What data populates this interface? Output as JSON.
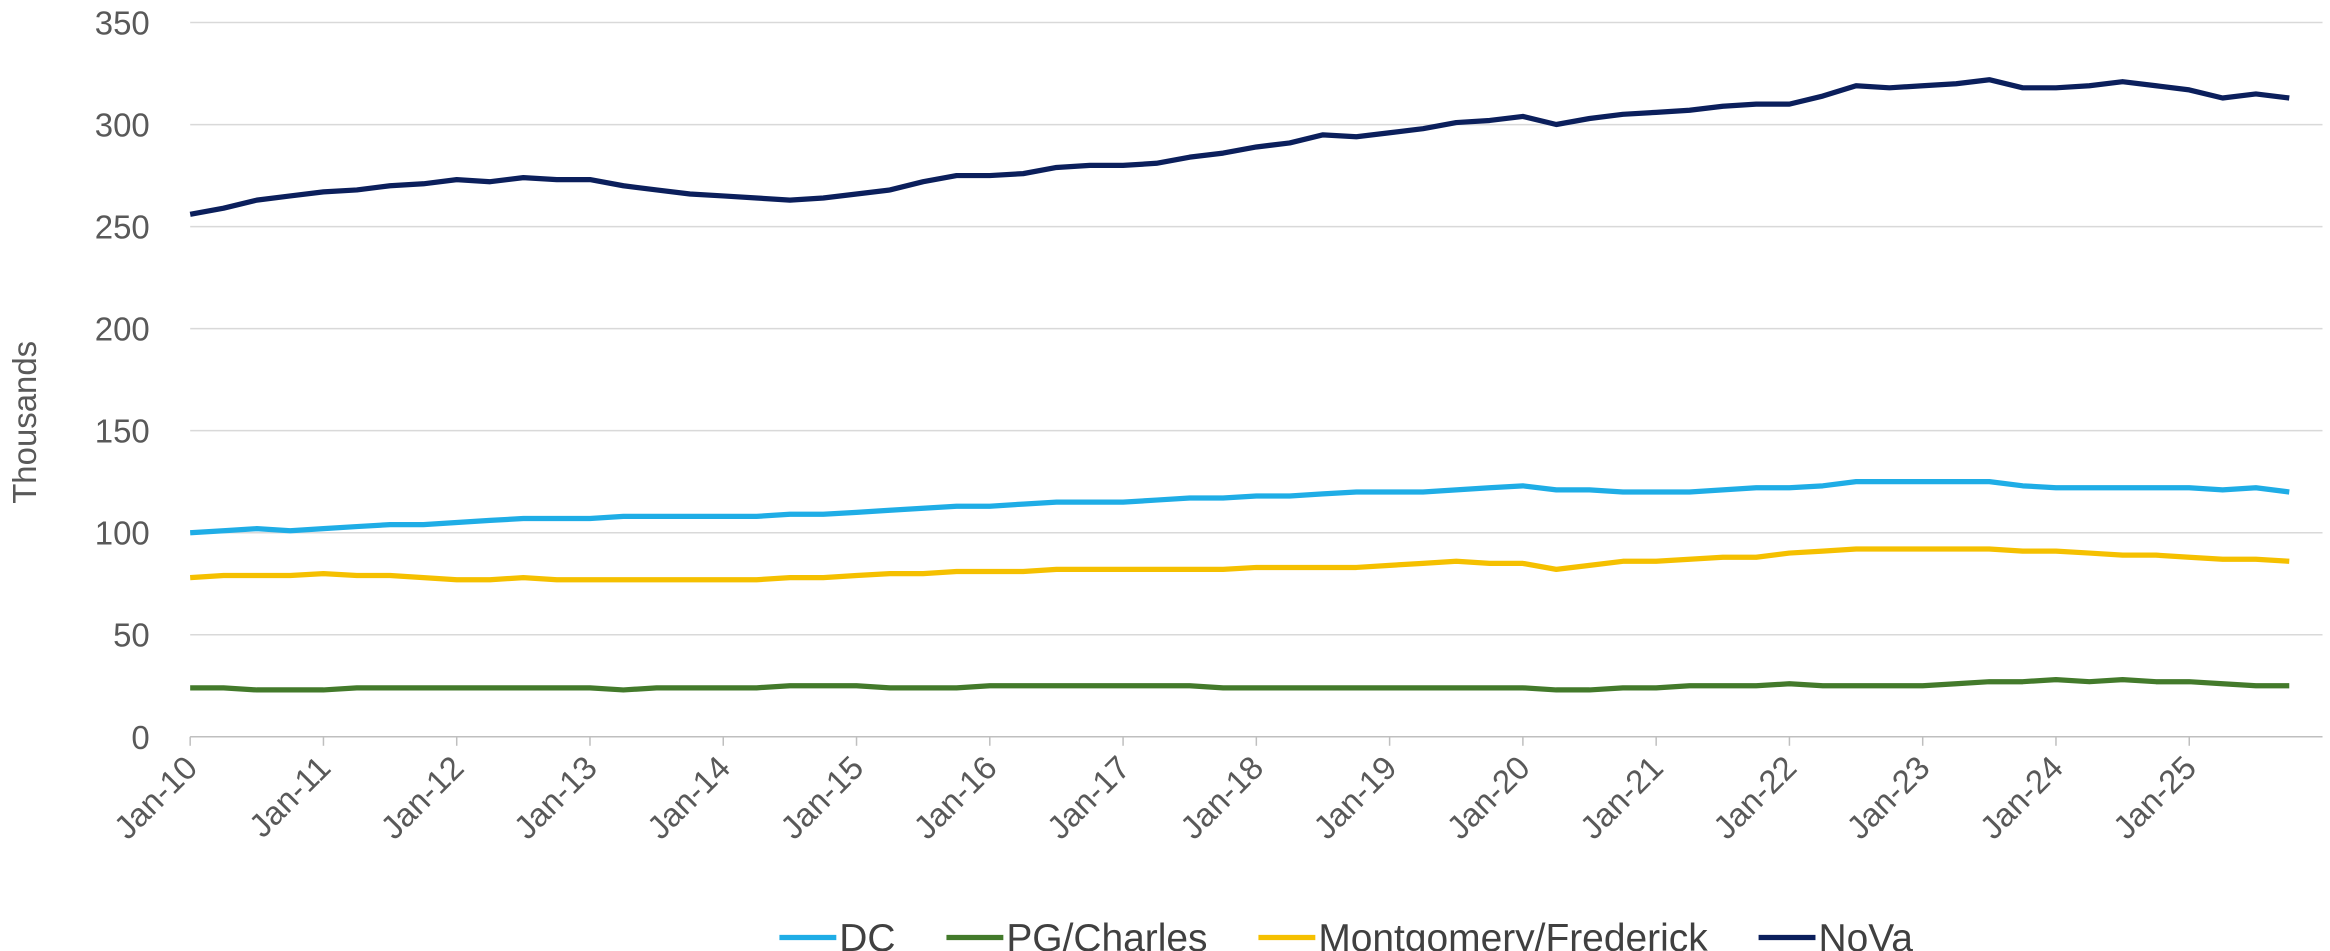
{
  "chart_data": {
    "type": "line",
    "y_label": "Thousands",
    "categories": [
      "Jan-10",
      null,
      null,
      null,
      "Jan-11",
      null,
      null,
      null,
      "Jan-12",
      null,
      null,
      null,
      "Jan-13",
      null,
      null,
      null,
      "Jan-14",
      null,
      null,
      null,
      "Jan-15",
      null,
      null,
      null,
      "Jan-16",
      null,
      null,
      null,
      "Jan-17",
      null,
      null,
      null,
      "Jan-18",
      null,
      null,
      null,
      "Jan-19",
      null,
      null,
      null,
      "Jan-20",
      null,
      null,
      null,
      "Jan-21",
      null,
      null,
      null,
      "Jan-22",
      null,
      null,
      null,
      "Jan-23",
      null,
      null,
      null,
      "Jan-24",
      null,
      null,
      null,
      "Jan-25",
      null,
      null,
      null
    ],
    "series": [
      {
        "name": "DC",
        "color": "#1fade6",
        "values": [
          100,
          101,
          102,
          101,
          102,
          103,
          104,
          104,
          105,
          106,
          107,
          107,
          107,
          108,
          108,
          108,
          108,
          108,
          109,
          109,
          110,
          111,
          112,
          113,
          113,
          114,
          115,
          115,
          115,
          116,
          117,
          117,
          118,
          118,
          119,
          120,
          120,
          120,
          121,
          122,
          123,
          121,
          121,
          120,
          120,
          120,
          121,
          122,
          122,
          123,
          125,
          125,
          125,
          125,
          125,
          123,
          122,
          122,
          122,
          122,
          122,
          121,
          122,
          120
        ]
      },
      {
        "name": "PG/Charles",
        "color": "#437a2b",
        "values": [
          24,
          24,
          23,
          23,
          23,
          24,
          24,
          24,
          24,
          24,
          24,
          24,
          24,
          23,
          24,
          24,
          24,
          24,
          25,
          25,
          25,
          24,
          24,
          24,
          25,
          25,
          25,
          25,
          25,
          25,
          25,
          24,
          24,
          24,
          24,
          24,
          24,
          24,
          24,
          24,
          24,
          23,
          23,
          24,
          24,
          25,
          25,
          25,
          26,
          25,
          25,
          25,
          25,
          26,
          27,
          27,
          28,
          27,
          28,
          27,
          27,
          26,
          25,
          25
        ]
      },
      {
        "name": "Montgomery/Frederick",
        "color": "#f5c000",
        "values": [
          78,
          79,
          79,
          79,
          80,
          79,
          79,
          78,
          77,
          77,
          78,
          77,
          77,
          77,
          77,
          77,
          77,
          77,
          78,
          78,
          79,
          80,
          80,
          81,
          81,
          81,
          82,
          82,
          82,
          82,
          82,
          82,
          83,
          83,
          83,
          83,
          84,
          85,
          86,
          85,
          85,
          82,
          84,
          86,
          86,
          87,
          88,
          88,
          90,
          91,
          92,
          92,
          92,
          92,
          92,
          91,
          91,
          90,
          89,
          89,
          88,
          87,
          87,
          86
        ]
      },
      {
        "name": "NoVa",
        "color": "#0b1f5c",
        "values": [
          256,
          259,
          263,
          265,
          267,
          268,
          270,
          271,
          273,
          272,
          274,
          273,
          273,
          270,
          268,
          266,
          265,
          264,
          263,
          264,
          266,
          268,
          272,
          275,
          275,
          276,
          279,
          280,
          280,
          281,
          284,
          286,
          289,
          291,
          295,
          294,
          296,
          298,
          301,
          302,
          304,
          300,
          303,
          305,
          306,
          307,
          309,
          310,
          310,
          314,
          319,
          318,
          319,
          320,
          322,
          318,
          318,
          319,
          321,
          319,
          317,
          313,
          315,
          313
        ]
      }
    ],
    "ylim": [
      0,
      350
    ],
    "yticks": [
      0,
      50,
      100,
      150,
      200,
      250,
      300,
      350
    ],
    "grid": true,
    "legend": "bottom"
  }
}
